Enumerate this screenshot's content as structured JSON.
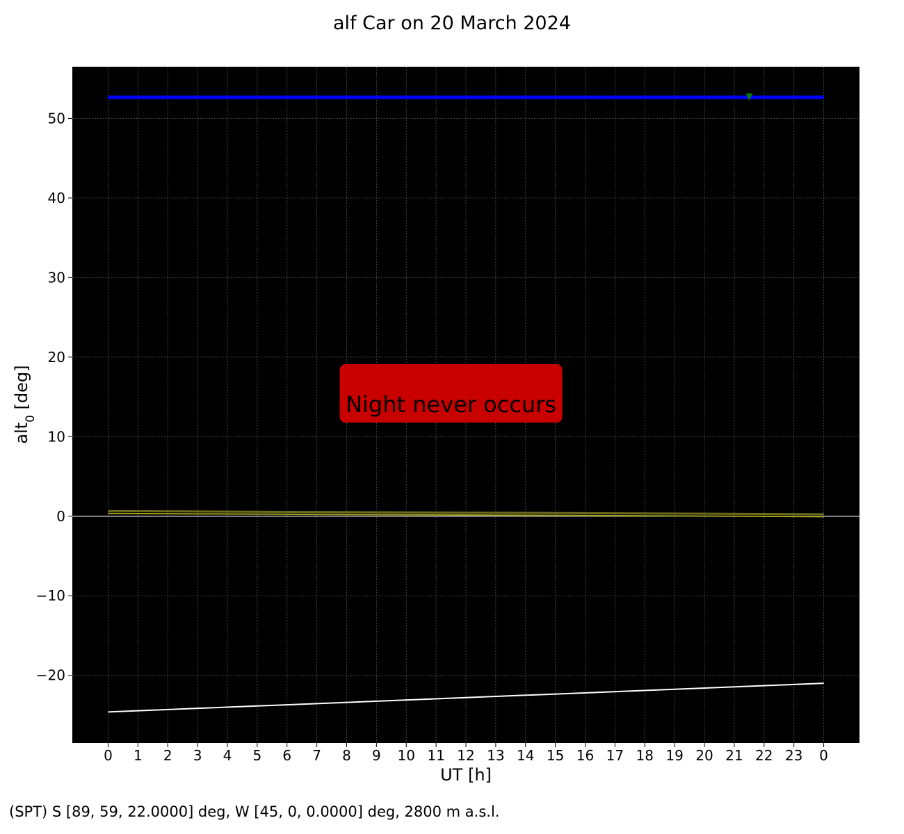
{
  "footer": "(SPT) S [89, 59, 22.0000] deg, W [45, 0, 0.0000] deg, 2800 m a.s.l.",
  "chart_data": {
    "type": "line",
    "title": "alf Car on 20 March 2024",
    "xlabel": "UT [h]",
    "ylabel_main": "alt",
    "ylabel_sub": "0",
    "ylabel_unit": " [deg]",
    "x_range": [
      -1.2,
      25.2
    ],
    "ylim": [
      -28.5,
      56.5
    ],
    "x_ticks": [
      0,
      1,
      2,
      3,
      4,
      5,
      6,
      7,
      8,
      9,
      10,
      11,
      12,
      13,
      14,
      15,
      16,
      17,
      18,
      19,
      20,
      21,
      22,
      23,
      24
    ],
    "x_tick_labels": [
      "0",
      "1",
      "2",
      "3",
      "4",
      "5",
      "6",
      "7",
      "8",
      "9",
      "10",
      "11",
      "12",
      "13",
      "14",
      "15",
      "16",
      "17",
      "18",
      "19",
      "20",
      "21",
      "22",
      "23",
      "0"
    ],
    "y_ticks": [
      -20,
      -10,
      0,
      10,
      20,
      30,
      40,
      50
    ],
    "y_tick_labels": [
      "−20",
      "−10",
      "0",
      "10",
      "20",
      "30",
      "40",
      "50"
    ],
    "grid": true,
    "background": "#000000",
    "annotation": {
      "text": "Night never occurs",
      "x_center": 11.5,
      "y_center": 15,
      "box_color": "#c80000"
    },
    "series": [
      {
        "color": "#0000ff",
        "width": 5,
        "x": [
          0,
          24
        ],
        "y": [
          52.66,
          52.66
        ]
      },
      {
        "color": "#6b6b1c",
        "width": 3,
        "x": [
          0,
          24
        ],
        "y": [
          0.65,
          0.25
        ]
      },
      {
        "color": "#a0a020",
        "width": 2,
        "x": [
          0,
          24
        ],
        "y": [
          0.35,
          -0.05
        ]
      },
      {
        "color": "#ffffff",
        "width": 2,
        "x": [
          0,
          24
        ],
        "y": [
          -24.6,
          -21.0
        ]
      }
    ],
    "horizon": {
      "y": 0,
      "color": "#bbbbbb"
    },
    "marker": {
      "x": 21.5,
      "y": 52.7,
      "color": "#008000",
      "shape": "triangle-down"
    }
  }
}
